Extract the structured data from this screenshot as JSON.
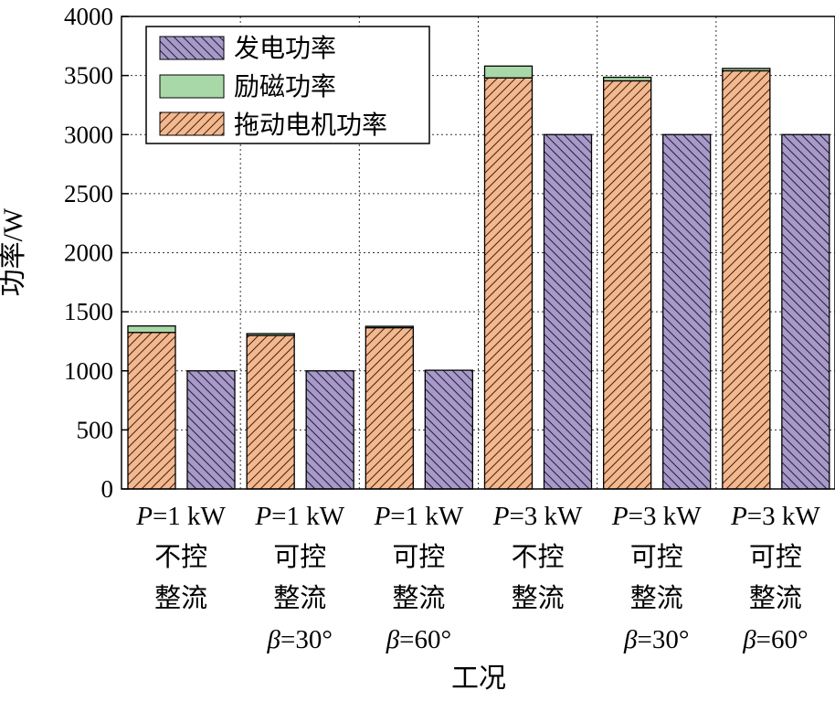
{
  "chart_data": {
    "type": "bar",
    "xlabel": "工况",
    "ylabel": "功率/W",
    "ylim": [
      0,
      4000
    ],
    "yticks": [
      "0",
      "500",
      "1000",
      "1500",
      "2000",
      "2500",
      "3000",
      "3500",
      "4000"
    ],
    "grid": true,
    "legend_position": "top-left",
    "categories": [
      [
        "P=1 kW",
        "不控",
        "整流",
        ""
      ],
      [
        "P=1 kW",
        "可控",
        "整流",
        "β=30°"
      ],
      [
        "P=1 kW",
        "可控",
        "整流",
        "β=60°"
      ],
      [
        "P=3 kW",
        "不控",
        "整流",
        ""
      ],
      [
        "P=3 kW",
        "可控",
        "整流",
        "β=30°"
      ],
      [
        "P=3 kW",
        "可控",
        "整流",
        "β=60°"
      ]
    ],
    "series": [
      {
        "name": "发电功率",
        "color": "#a89ac8",
        "hatch": "\\\\",
        "values": [
          1000,
          1000,
          1005,
          3000,
          3000,
          3000
        ]
      },
      {
        "name": "励磁功率",
        "color": "#a8d8a8",
        "hatch": "",
        "values": [
          55,
          15,
          12,
          100,
          30,
          20
        ]
      },
      {
        "name": "拖动电机功率",
        "color": "#f4b890",
        "hatch": "//",
        "values": [
          1325,
          1300,
          1365,
          3480,
          3455,
          3540
        ]
      }
    ],
    "stacked_series": [
      "拖动电机功率",
      "励磁功率"
    ],
    "separate_series": [
      "发电功率"
    ]
  }
}
